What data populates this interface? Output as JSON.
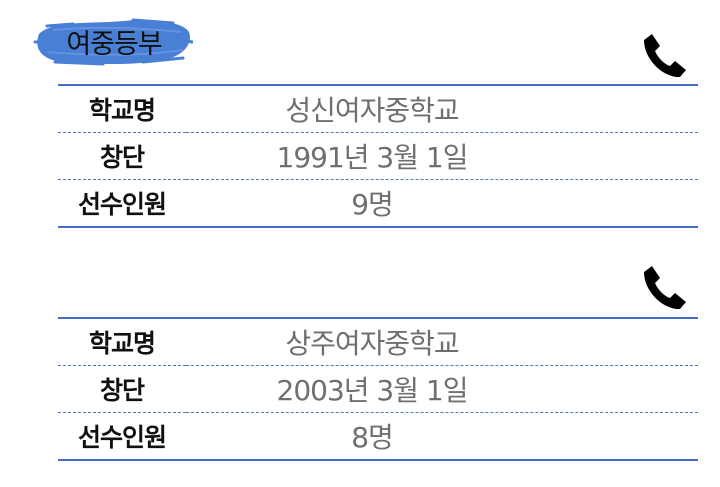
{
  "section": {
    "title": "여중등부"
  },
  "icons": {
    "phone": "phone-icon"
  },
  "colors": {
    "accent": "#3f6fc6",
    "badge": "#4a7fd6",
    "value_text": "#6f6f6f"
  },
  "schools": [
    {
      "rows": [
        {
          "label": "학교명",
          "value": "성신여자중학교"
        },
        {
          "label": "창단",
          "value": "1991년  3월  1일"
        },
        {
          "label": "선수인원",
          "value": "9명"
        }
      ]
    },
    {
      "rows": [
        {
          "label": "학교명",
          "value": "상주여자중학교"
        },
        {
          "label": "창단",
          "value": "2003년  3월  1일"
        },
        {
          "label": "선수인원",
          "value": "8명"
        }
      ]
    }
  ]
}
